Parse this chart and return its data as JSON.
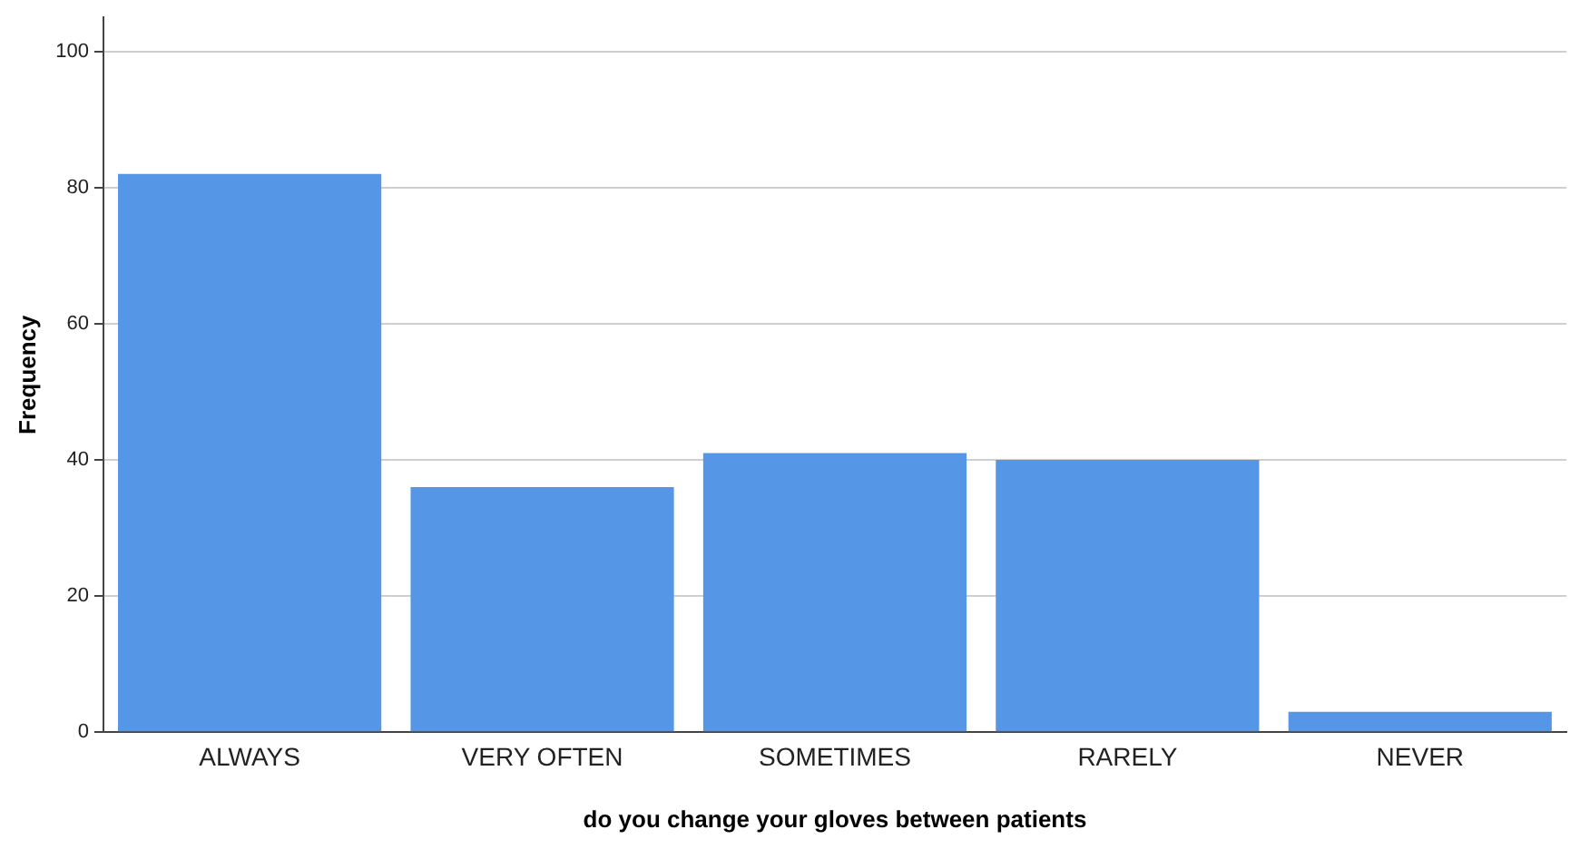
{
  "chart_data": {
    "type": "bar",
    "xlabel": "do you change your gloves between patients",
    "ylabel": "Frequency",
    "categories": [
      "ALWAYS",
      "VERY OFTEN",
      "SOMETIMES",
      "RARELY",
      "NEVER"
    ],
    "values": [
      82,
      36,
      41,
      40,
      3
    ],
    "color": "#5596e6",
    "ylim": [
      0,
      105
    ],
    "yticks": [
      0,
      20,
      40,
      60,
      80,
      100
    ],
    "grid": "y"
  }
}
